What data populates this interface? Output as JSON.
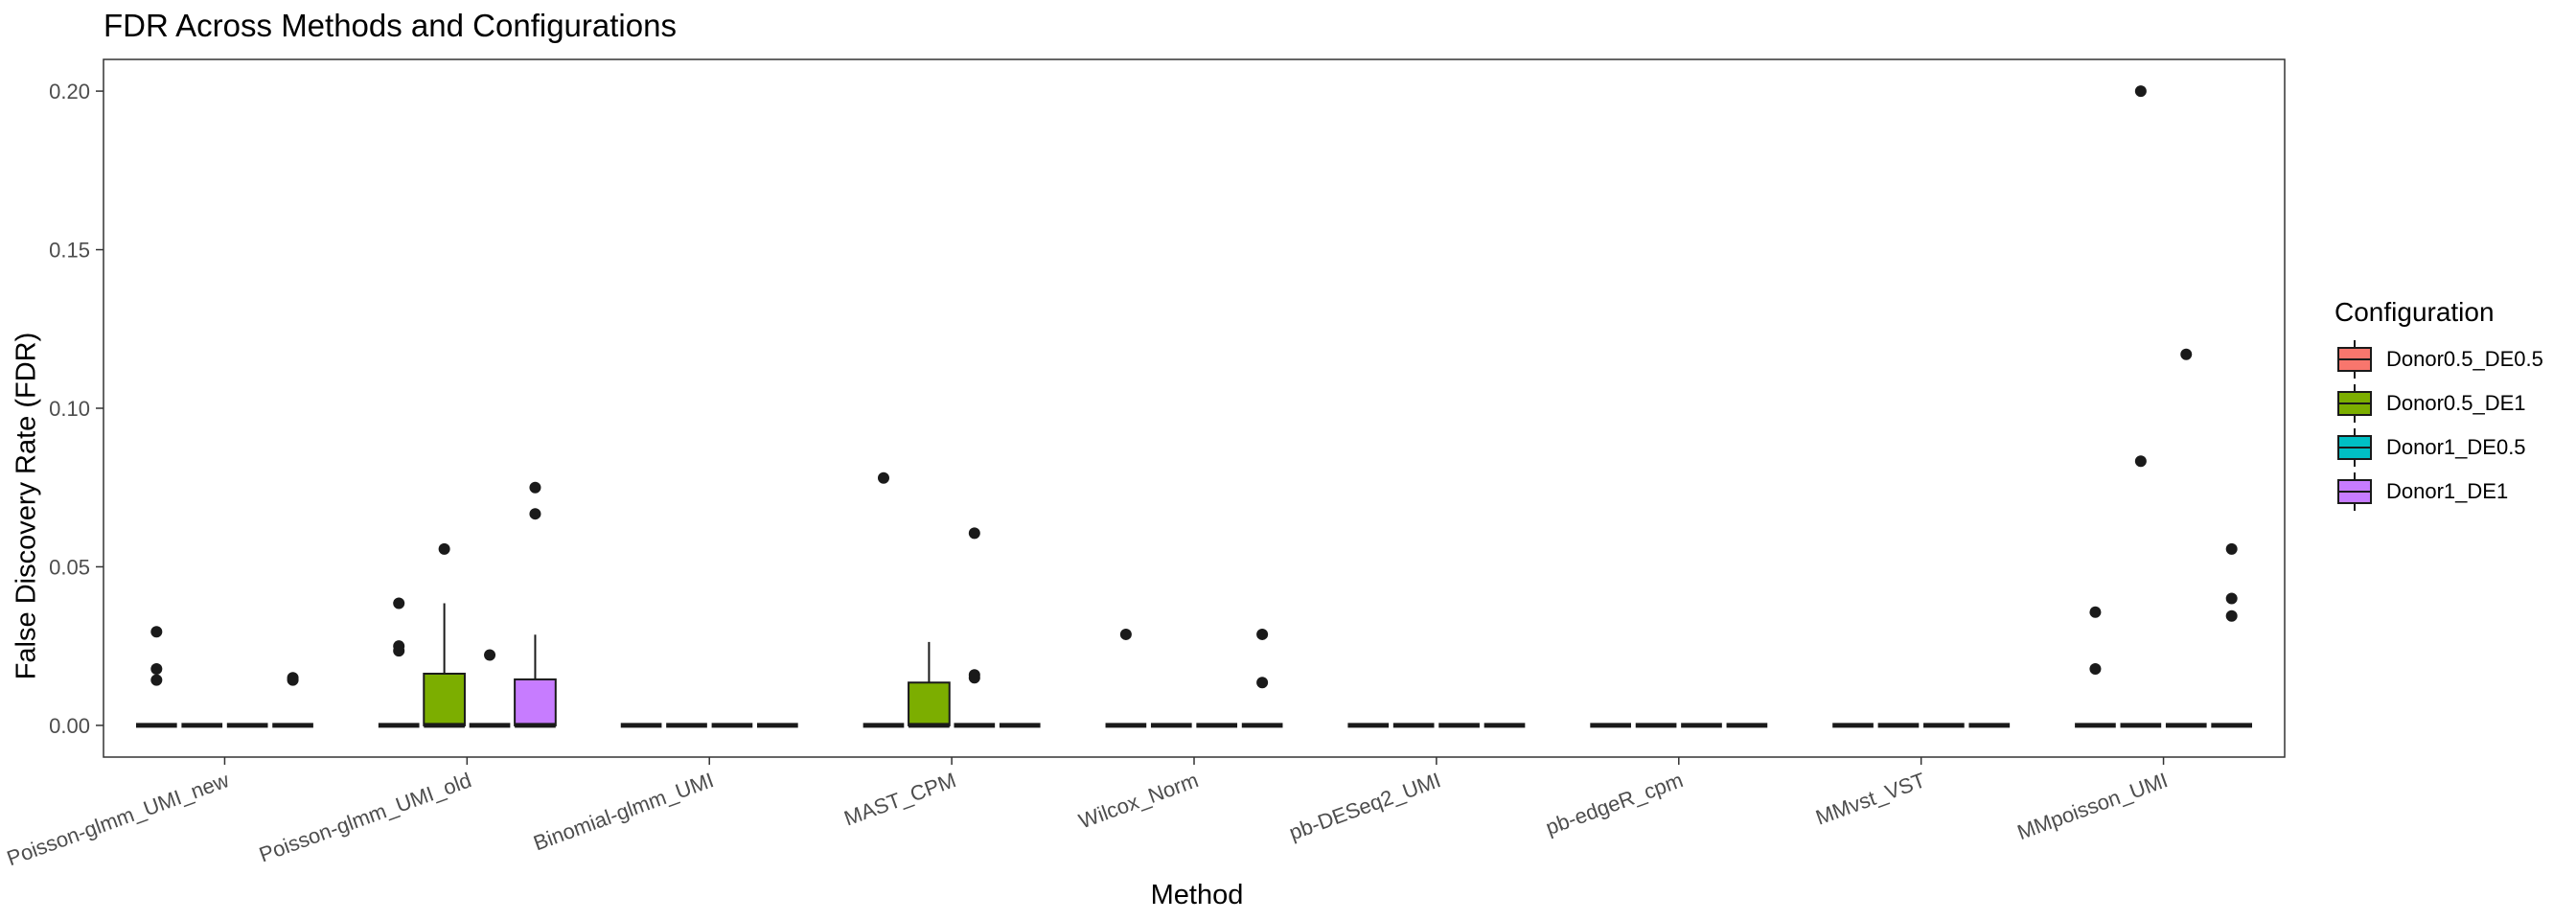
{
  "chart_data": {
    "type": "boxplot",
    "title": "FDR Across Methods and Configurations",
    "xlabel": "Method",
    "ylabel": "False Discovery Rate (FDR)",
    "ylim": [
      -0.01,
      0.21
    ],
    "yticks": [
      0.0,
      0.05,
      0.1,
      0.15,
      0.2
    ],
    "ytick_labels": [
      "0.00",
      "0.05",
      "0.10",
      "0.15",
      "0.20"
    ],
    "grid": false,
    "legend_placement": "right",
    "legend_title": "Configuration",
    "categories": [
      "Poisson-glmm_UMI_new",
      "Poisson-glmm_UMI_old",
      "Binomial-glmm_UMI",
      "MAST_CPM",
      "Wilcox_Norm",
      "pb-DESeq2_UMI",
      "pb-edgeR_cpm",
      "MMvst_VST",
      "MMpoisson_UMI"
    ],
    "series": [
      {
        "name": "Donor0.5_DE0.5",
        "color": "#F8766D",
        "boxes": [
          {
            "q1": 0,
            "median": 0,
            "q3": 0,
            "whisker_low": 0,
            "whisker_high": 0,
            "outliers": [
              0.0295,
              0.0178,
              0.0143
            ]
          },
          {
            "q1": 0,
            "median": 0,
            "q3": 0,
            "whisker_low": 0,
            "whisker_high": 0,
            "outliers": [
              0.0385,
              0.025,
              0.0235
            ]
          },
          {
            "q1": 0,
            "median": 0,
            "q3": 0,
            "whisker_low": 0,
            "whisker_high": 0,
            "outliers": []
          },
          {
            "q1": 0,
            "median": 0,
            "q3": 0,
            "whisker_low": 0,
            "whisker_high": 0,
            "outliers": [
              0.078
            ]
          },
          {
            "q1": 0,
            "median": 0,
            "q3": 0,
            "whisker_low": 0,
            "whisker_high": 0,
            "outliers": [
              0.0287
            ]
          },
          {
            "q1": 0,
            "median": 0,
            "q3": 0,
            "whisker_low": 0,
            "whisker_high": 0,
            "outliers": []
          },
          {
            "q1": 0,
            "median": 0,
            "q3": 0,
            "whisker_low": 0,
            "whisker_high": 0,
            "outliers": []
          },
          {
            "q1": 0,
            "median": 0,
            "q3": 0,
            "whisker_low": 0,
            "whisker_high": 0,
            "outliers": []
          },
          {
            "q1": 0,
            "median": 0,
            "q3": 0,
            "whisker_low": 0,
            "whisker_high": 0,
            "outliers": [
              0.0357,
              0.0178
            ]
          }
        ]
      },
      {
        "name": "Donor0.5_DE1",
        "color": "#7CAE00",
        "boxes": [
          {
            "q1": 0,
            "median": 0,
            "q3": 0,
            "whisker_low": 0,
            "whisker_high": 0,
            "outliers": []
          },
          {
            "q1": 0,
            "median": 0,
            "q3": 0.0163,
            "whisker_low": 0,
            "whisker_high": 0.0385,
            "outliers": [
              0.0556
            ]
          },
          {
            "q1": 0,
            "median": 0,
            "q3": 0,
            "whisker_low": 0,
            "whisker_high": 0,
            "outliers": []
          },
          {
            "q1": 0,
            "median": 0,
            "q3": 0.0135,
            "whisker_low": 0,
            "whisker_high": 0.0263,
            "outliers": []
          },
          {
            "q1": 0,
            "median": 0,
            "q3": 0,
            "whisker_low": 0,
            "whisker_high": 0,
            "outliers": []
          },
          {
            "q1": 0,
            "median": 0,
            "q3": 0,
            "whisker_low": 0,
            "whisker_high": 0,
            "outliers": []
          },
          {
            "q1": 0,
            "median": 0,
            "q3": 0,
            "whisker_low": 0,
            "whisker_high": 0,
            "outliers": []
          },
          {
            "q1": 0,
            "median": 0,
            "q3": 0,
            "whisker_low": 0,
            "whisker_high": 0,
            "outliers": []
          },
          {
            "q1": 0,
            "median": 0,
            "q3": 0,
            "whisker_low": 0,
            "whisker_high": 0,
            "outliers": [
              0.2,
              0.0833
            ]
          }
        ]
      },
      {
        "name": "Donor1_DE0.5",
        "color": "#00BFC4",
        "boxes": [
          {
            "q1": 0,
            "median": 0,
            "q3": 0,
            "whisker_low": 0,
            "whisker_high": 0,
            "outliers": []
          },
          {
            "q1": 0,
            "median": 0,
            "q3": 0,
            "whisker_low": 0,
            "whisker_high": 0,
            "outliers": [
              0.0222
            ]
          },
          {
            "q1": 0,
            "median": 0,
            "q3": 0,
            "whisker_low": 0,
            "whisker_high": 0,
            "outliers": []
          },
          {
            "q1": 0,
            "median": 0,
            "q3": 0,
            "whisker_low": 0,
            "whisker_high": 0,
            "outliers": [
              0.0606,
              0.0159,
              0.015
            ]
          },
          {
            "q1": 0,
            "median": 0,
            "q3": 0,
            "whisker_low": 0,
            "whisker_high": 0,
            "outliers": []
          },
          {
            "q1": 0,
            "median": 0,
            "q3": 0,
            "whisker_low": 0,
            "whisker_high": 0,
            "outliers": []
          },
          {
            "q1": 0,
            "median": 0,
            "q3": 0,
            "whisker_low": 0,
            "whisker_high": 0,
            "outliers": []
          },
          {
            "q1": 0,
            "median": 0,
            "q3": 0,
            "whisker_low": 0,
            "whisker_high": 0,
            "outliers": []
          },
          {
            "q1": 0,
            "median": 0,
            "q3": 0,
            "whisker_low": 0,
            "whisker_high": 0,
            "outliers": [
              0.117
            ]
          }
        ]
      },
      {
        "name": "Donor1_DE1",
        "color": "#C77CFF",
        "boxes": [
          {
            "q1": 0,
            "median": 0,
            "q3": 0,
            "whisker_low": 0,
            "whisker_high": 0,
            "outliers": [
              0.015,
              0.0143
            ]
          },
          {
            "q1": 0,
            "median": 0,
            "q3": 0.0145,
            "whisker_low": 0,
            "whisker_high": 0.0286,
            "outliers": [
              0.075,
              0.0667
            ]
          },
          {
            "q1": 0,
            "median": 0,
            "q3": 0,
            "whisker_low": 0,
            "whisker_high": 0,
            "outliers": []
          },
          {
            "q1": 0,
            "median": 0,
            "q3": 0,
            "whisker_low": 0,
            "whisker_high": 0,
            "outliers": []
          },
          {
            "q1": 0,
            "median": 0,
            "q3": 0,
            "whisker_low": 0,
            "whisker_high": 0,
            "outliers": [
              0.0287,
              0.0135
            ]
          },
          {
            "q1": 0,
            "median": 0,
            "q3": 0,
            "whisker_low": 0,
            "whisker_high": 0,
            "outliers": []
          },
          {
            "q1": 0,
            "median": 0,
            "q3": 0,
            "whisker_low": 0,
            "whisker_high": 0,
            "outliers": []
          },
          {
            "q1": 0,
            "median": 0,
            "q3": 0,
            "whisker_low": 0,
            "whisker_high": 0,
            "outliers": []
          },
          {
            "q1": 0,
            "median": 0,
            "q3": 0,
            "whisker_low": 0,
            "whisker_high": 0,
            "outliers": [
              0.0556,
              0.04,
              0.0345
            ]
          }
        ]
      }
    ]
  }
}
